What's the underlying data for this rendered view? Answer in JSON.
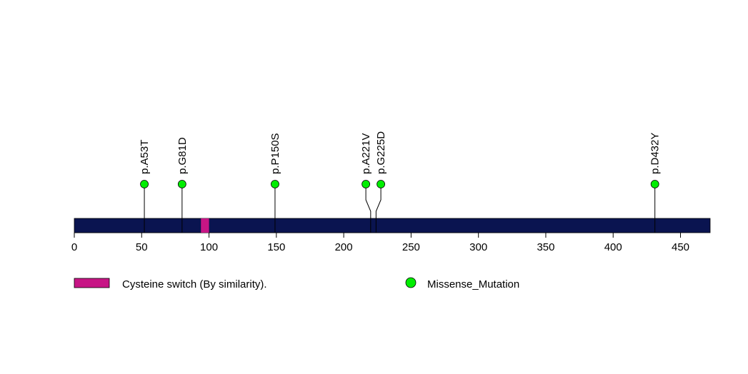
{
  "chart_data": {
    "type": "lollipop",
    "protein_length": 472,
    "xlim": [
      0,
      472
    ],
    "x_ticks": [
      0,
      50,
      100,
      150,
      200,
      250,
      300,
      350,
      400,
      450
    ],
    "domains": [
      {
        "name": "Cysteine switch (By similarity).",
        "start": 94,
        "end": 100,
        "color": "#c71585"
      }
    ],
    "mutations": [
      {
        "label": "p.A53T",
        "position": 52,
        "type": "Missense_Mutation"
      },
      {
        "label": "p.G81D",
        "position": 80,
        "type": "Missense_Mutation"
      },
      {
        "label": "p.P150S",
        "position": 149,
        "type": "Missense_Mutation"
      },
      {
        "label": "p.A221V",
        "position": 220,
        "type": "Missense_Mutation"
      },
      {
        "label": "p.G225D",
        "position": 224,
        "type": "Missense_Mutation"
      },
      {
        "label": "p.D432Y",
        "position": 431,
        "type": "Missense_Mutation"
      }
    ],
    "legend": [
      {
        "label": "Cysteine switch (By similarity).",
        "kind": "domain",
        "color": "#c71585"
      },
      {
        "label": "Missense_Mutation",
        "kind": "mutation",
        "color": "#00ee00"
      }
    ],
    "colors": {
      "protein_bar": "#0a1450",
      "missense": "#00ee00",
      "domain": "#c71585"
    }
  }
}
